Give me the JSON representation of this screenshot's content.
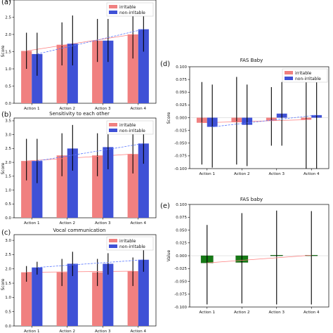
{
  "colors": {
    "irritable": "#f08080",
    "non_irritable": "#3f51d6",
    "green": "#157a15",
    "axis": "#000000",
    "trend_red": "#ff7f7f",
    "trend_blue": "#5b79ff"
  },
  "chart_data": [
    {
      "id": "a",
      "panel_label": "(a)",
      "type": "bar",
      "title": "",
      "xlabel": "",
      "ylabel": "Score",
      "categories": [
        "Action 1",
        "Action 2",
        "Action 3",
        "Action 4"
      ],
      "ylim": [
        0.0,
        3.0
      ],
      "yticks": [
        0.0,
        0.5,
        1.0,
        1.5,
        2.0,
        2.5,
        3.0
      ],
      "ytick_labels": [
        "0.0",
        "0.5",
        "1.0",
        "1.5",
        "2.0",
        "2.5",
        "3.0"
      ],
      "legend": {
        "position": "top-right",
        "entries": [
          "irritable",
          "non-irritable"
        ]
      },
      "series": [
        {
          "name": "irritable",
          "values": [
            1.52,
            1.7,
            1.82,
            2.0
          ],
          "err_low": [
            1.0,
            1.1,
            1.2,
            1.3
          ],
          "err_high": [
            2.05,
            2.35,
            2.45,
            2.65
          ]
        },
        {
          "name": "non-irritable",
          "values": [
            1.43,
            1.73,
            1.82,
            2.15
          ],
          "err_low": [
            0.8,
            1.1,
            1.2,
            1.5
          ],
          "err_high": [
            2.05,
            2.55,
            2.45,
            2.75
          ]
        }
      ]
    },
    {
      "id": "b",
      "panel_label": "(b)",
      "type": "bar",
      "title": "Sensitivity to each other",
      "xlabel": "",
      "ylabel": "Score",
      "categories": [
        "Action 1",
        "Action 2",
        "Action 3",
        "Action 4"
      ],
      "ylim": [
        0.0,
        3.6
      ],
      "yticks": [
        0.0,
        0.5,
        1.0,
        1.5,
        2.0,
        2.5,
        3.0,
        3.5
      ],
      "ytick_labels": [
        "0.0",
        "0.5",
        "1.0",
        "1.5",
        "2.0",
        "2.5",
        "3.0",
        "3.5"
      ],
      "legend": {
        "position": "top-right",
        "entries": [
          "irritable",
          "non-irritable"
        ]
      },
      "series": [
        {
          "name": "irritable",
          "values": [
            2.05,
            2.25,
            2.25,
            2.3
          ],
          "err_low": [
            1.35,
            1.5,
            1.5,
            1.6
          ],
          "err_high": [
            2.85,
            3.05,
            3.05,
            3.1
          ]
        },
        {
          "name": "non-irritable",
          "values": [
            2.05,
            2.5,
            2.55,
            2.68
          ],
          "err_low": [
            1.25,
            1.7,
            1.75,
            1.95
          ],
          "err_high": [
            2.85,
            3.35,
            3.35,
            3.45
          ]
        }
      ]
    },
    {
      "id": "c",
      "panel_label": "(c)",
      "type": "bar",
      "title": "Vocal communication",
      "xlabel": "",
      "ylabel": "Score",
      "categories": [
        "Action 1",
        "Action 2",
        "Action 3",
        "Action 4"
      ],
      "ylim": [
        0.0,
        3.2
      ],
      "yticks": [
        0.0,
        0.5,
        1.0,
        1.5,
        2.0,
        2.5,
        3.0
      ],
      "ytick_labels": [
        "0.0",
        "0.5",
        "1.0",
        "1.5",
        "2.0",
        "2.5",
        "3.0"
      ],
      "legend": {
        "position": "top-right",
        "entries": [
          "irritable",
          "non-irritable"
        ]
      },
      "series": [
        {
          "name": "irritable",
          "values": [
            1.88,
            1.88,
            1.88,
            1.92
          ],
          "err_low": [
            1.55,
            1.4,
            1.4,
            1.4
          ],
          "err_high": [
            2.1,
            2.35,
            2.35,
            2.4
          ]
        },
        {
          "name": "non-irritable",
          "values": [
            2.05,
            2.18,
            2.18,
            2.32
          ],
          "err_low": [
            1.8,
            1.75,
            1.8,
            1.9
          ],
          "err_high": [
            2.25,
            2.6,
            2.55,
            2.75
          ]
        }
      ]
    },
    {
      "id": "d",
      "panel_label": "(d)",
      "type": "bar",
      "title": "FAS Baby",
      "xlabel": "",
      "ylabel": "Score",
      "categories": [
        "Action 1",
        "Action 2",
        "Action 3",
        "Action 4"
      ],
      "ylim": [
        -0.1,
        0.1
      ],
      "yticks": [
        -0.1,
        -0.075,
        -0.05,
        -0.025,
        0.0,
        0.025,
        0.05,
        0.075,
        0.1
      ],
      "ytick_labels": [
        "-0.100",
        "-0.075",
        "-0.050",
        "-0.025",
        "0.000",
        "0.025",
        "0.050",
        "0.075",
        "0.100"
      ],
      "legend": {
        "position": "top-right",
        "entries": [
          "irritable",
          "non-irritable"
        ]
      },
      "series": [
        {
          "name": "irritable",
          "values": [
            -0.01,
            -0.009,
            -0.006,
            -0.004
          ],
          "err_low": [
            -0.092,
            -0.092,
            -0.055,
            -0.1
          ],
          "err_high": [
            0.07,
            0.08,
            0.06,
            0.095
          ]
        },
        {
          "name": "non-irritable",
          "values": [
            -0.018,
            -0.014,
            0.008,
            0.005
          ],
          "err_low": [
            -0.098,
            -0.095,
            -0.055,
            -0.1
          ],
          "err_high": [
            0.065,
            0.065,
            0.07,
            0.095
          ]
        }
      ]
    },
    {
      "id": "e",
      "panel_label": "(e)",
      "type": "bar",
      "title": "FAS baby",
      "xlabel": "",
      "ylabel": "Value",
      "categories": [
        "Action 1",
        "Action 2",
        "Action 3",
        "Action 4"
      ],
      "ylim": [
        -0.1,
        0.1
      ],
      "yticks": [
        -0.1,
        -0.075,
        -0.05,
        -0.025,
        0.0,
        0.025,
        0.05,
        0.075,
        0.1
      ],
      "ytick_labels": [
        "-0.100",
        "-0.075",
        "-0.050",
        "-0.025",
        "0.000",
        "0.025",
        "0.050",
        "0.075",
        "0.100"
      ],
      "legend": null,
      "series": [
        {
          "name": "",
          "values": [
            -0.014,
            -0.013,
            0.001,
            0.001
          ],
          "err_low": [
            -0.095,
            -0.093,
            -0.095,
            -0.095
          ],
          "err_high": [
            0.06,
            0.083,
            0.088,
            0.087
          ]
        }
      ]
    }
  ]
}
